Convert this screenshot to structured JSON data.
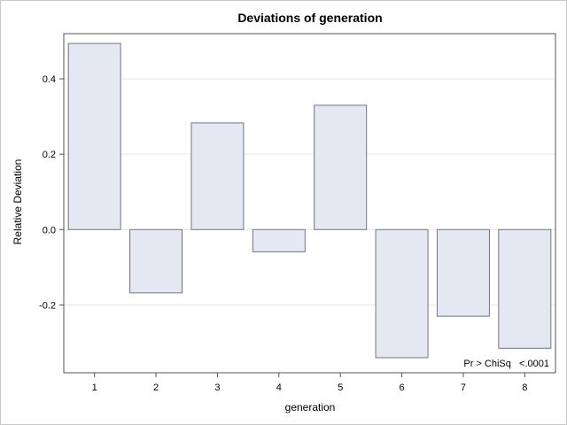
{
  "chart_data": {
    "type": "bar",
    "title": "Deviations of generation",
    "xlabel": "generation",
    "ylabel": "Relative Deviation",
    "categories": [
      "1",
      "2",
      "3",
      "4",
      "5",
      "6",
      "7",
      "8"
    ],
    "values": [
      0.494,
      -0.168,
      0.283,
      -0.059,
      0.33,
      -0.34,
      -0.23,
      -0.315
    ],
    "ylim": [
      -0.38,
      0.52
    ],
    "yticks": [
      -0.2,
      0.0,
      0.2,
      0.4
    ],
    "ytick_labels": [
      "-0.2",
      "0.0",
      "0.2",
      "0.4"
    ],
    "grid": true,
    "annotation": "Pr > ChiSq   <.0001",
    "colors": {
      "bar_fill": "#e4e8f2",
      "bar_stroke": "#75757f",
      "grid": "#e6e6e6",
      "axis": "#555555"
    }
  }
}
